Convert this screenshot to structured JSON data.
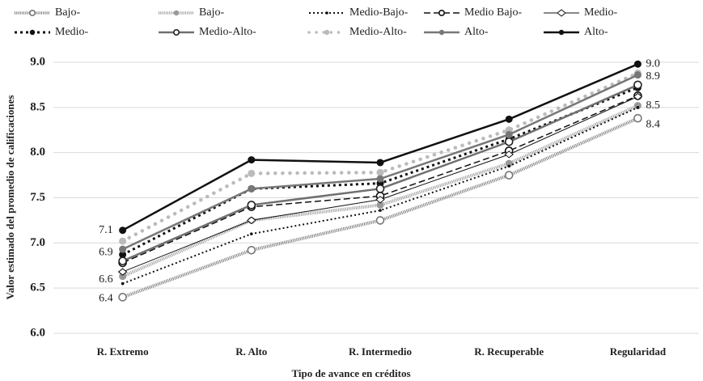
{
  "chart_data": {
    "type": "line",
    "x_label": "Tipo de avance en créditos",
    "y_label": "Valor estimado del promedio de calificaciones",
    "categories": [
      "R. Extremo",
      "R. Alto",
      "R. Intermedio",
      "R. Recuperable",
      "Regularidad"
    ],
    "ylim": [
      6,
      9
    ],
    "yticks": [
      {
        "value": 6,
        "label": "6.0"
      },
      {
        "value": 6.5,
        "label": "6.5"
      },
      {
        "value": 7,
        "label": "7.0"
      },
      {
        "value": 7.5,
        "label": "7.5"
      },
      {
        "value": 8,
        "label": "8.0"
      },
      {
        "value": 8.5,
        "label": "8.5"
      },
      {
        "value": 9,
        "label": "9.0"
      }
    ],
    "grid": true,
    "series": [
      {
        "name": "Bajo-",
        "color": "#777777",
        "style": "hatched",
        "marker": "open",
        "values": [
          6.4,
          6.92,
          7.25,
          7.75,
          8.38
        ]
      },
      {
        "name": "Bajo-",
        "color": "#999999",
        "style": "hatched",
        "marker": "filled",
        "values": [
          6.63,
          7.25,
          7.42,
          7.88,
          8.52
        ]
      },
      {
        "name": "Medio-Bajo-",
        "color": "#111111",
        "style": "dotted",
        "marker": "small",
        "values": [
          6.55,
          7.1,
          7.36,
          7.85,
          8.5
        ]
      },
      {
        "name": "Medio Bajo-",
        "color": "#111111",
        "style": "dashed",
        "marker": "open",
        "values": [
          6.78,
          7.4,
          7.52,
          8.02,
          8.63
        ]
      },
      {
        "name": "Medio-",
        "color": "#111111",
        "style": "thin",
        "marker": "diamond",
        "values": [
          6.68,
          7.25,
          7.48,
          7.98,
          8.62
        ]
      },
      {
        "name": "Medio-",
        "color": "#111111",
        "style": "bolddotted",
        "marker": "filled",
        "values": [
          6.87,
          7.6,
          7.66,
          8.15,
          8.72
        ]
      },
      {
        "name": "Medio-Alto-",
        "color": "#707070",
        "style": "solid",
        "marker": "open",
        "values": [
          6.8,
          7.42,
          7.6,
          8.12,
          8.75
        ]
      },
      {
        "name": "Medio-Alto-",
        "color": "#bbbbbb",
        "style": "lightdotted",
        "marker": "filled",
        "values": [
          7.02,
          7.77,
          7.78,
          8.25,
          8.88
        ]
      },
      {
        "name": "Alto-",
        "color": "#777777",
        "style": "solid",
        "marker": "filled",
        "values": [
          6.93,
          7.6,
          7.71,
          8.2,
          8.86
        ]
      },
      {
        "name": "Alto-",
        "color": "#111111",
        "style": "solid",
        "marker": "filled",
        "values": [
          7.14,
          7.92,
          7.89,
          8.37,
          8.98
        ]
      }
    ],
    "annotations": [
      "7.1",
      "6.9",
      "6.6",
      "6.4",
      "9.0",
      "8.9",
      "8.5",
      "8.4"
    ]
  }
}
